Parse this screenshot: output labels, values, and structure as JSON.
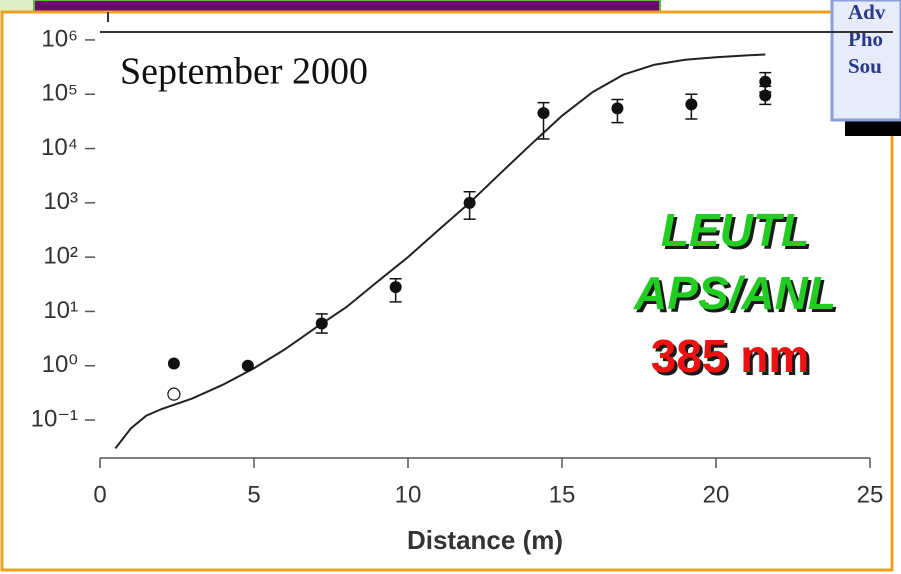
{
  "chart_data": {
    "type": "scatter",
    "x": [
      2.4,
      4.8,
      7.2,
      9.6,
      12,
      14.4,
      16.8,
      19.2,
      21.6,
      21.6
    ],
    "values": [
      1.1,
      1.0,
      6,
      28,
      1000,
      45000,
      55000,
      65000,
      170000,
      95000
    ],
    "y_low": [
      null,
      null,
      4,
      15,
      500,
      15000,
      30000,
      35000,
      110000,
      65000
    ],
    "y_high": [
      null,
      null,
      9,
      40,
      1600,
      70000,
      80000,
      100000,
      250000,
      140000
    ],
    "color": "#111111",
    "open_points": {
      "x": [
        2.4
      ],
      "values": [
        0.3
      ]
    },
    "curve": {
      "x": [
        0.5,
        1,
        1.5,
        2,
        3,
        4,
        5,
        6,
        7,
        8,
        9,
        10,
        11,
        12,
        13,
        14,
        15,
        16,
        17,
        18,
        19,
        20,
        21,
        21.6
      ],
      "values": [
        0.03,
        0.07,
        0.12,
        0.16,
        0.25,
        0.45,
        0.9,
        2,
        5,
        12,
        35,
        100,
        320,
        1000,
        3500,
        12000,
        40000,
        110000,
        230000,
        350000,
        430000,
        480000,
        520000,
        540000
      ]
    },
    "xlim": [
      0,
      25
    ],
    "xticks": [
      0,
      5,
      10,
      15,
      20,
      25
    ],
    "ylim": [
      0.02,
      1400000
    ],
    "log_y": true,
    "yticks": [
      {
        "value": 0.1,
        "label": "10⁻¹"
      },
      {
        "value": 1,
        "label": "10⁰"
      },
      {
        "value": 10,
        "label": "10¹"
      },
      {
        "value": 100,
        "label": "10²"
      },
      {
        "value": 1000,
        "label": "10³"
      },
      {
        "value": 10000,
        "label": "10⁴"
      },
      {
        "value": 100000,
        "label": "10⁵"
      },
      {
        "value": 1000000,
        "label": "10⁶"
      }
    ],
    "x_label": "Distance (m)",
    "annotations": [
      "September 2000",
      "LEUTL",
      "APS/ANL",
      "385 nm"
    ]
  },
  "logo": {
    "lines": [
      "Adv",
      "Pho",
      "Sou"
    ]
  }
}
